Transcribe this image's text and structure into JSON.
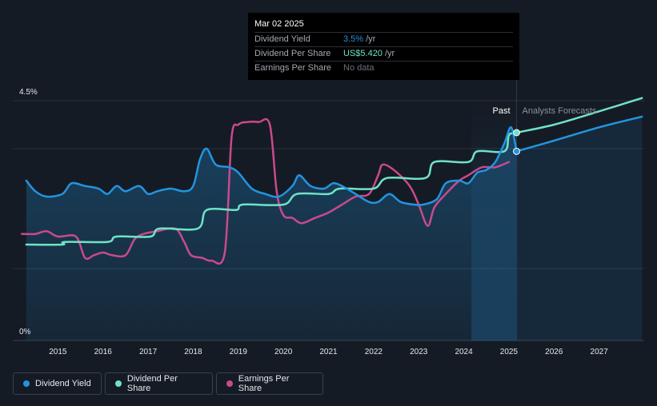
{
  "tooltip": {
    "date": "Mar 02 2025",
    "rows": [
      {
        "label": "Dividend Yield",
        "value": "3.5%",
        "unit": "/yr"
      },
      {
        "label": "Dividend Per Share",
        "value": "US$5.420",
        "unit": "/yr"
      },
      {
        "label": "Earnings Per Share",
        "value": "No data",
        "unit": ""
      }
    ]
  },
  "legend": [
    {
      "label": "Dividend Yield"
    },
    {
      "label": "Dividend Per Share"
    },
    {
      "label": "Earnings Per Share"
    }
  ],
  "colors": {
    "background": "#151b24",
    "dividend_yield": "#2394df",
    "dividend_per_share": "#6fe3c7",
    "earnings_per_share": "#c94a8c",
    "grid": "#2c323c",
    "no_data": "#6b717a"
  },
  "chart_data": {
    "type": "line",
    "x_ticks": [
      "2015",
      "2016",
      "2017",
      "2018",
      "2019",
      "2020",
      "2021",
      "2022",
      "2023",
      "2024",
      "2025",
      "2026",
      "2027"
    ],
    "xlim": [
      2014.0,
      2028.0
    ],
    "y_axis": {
      "top_label": "4.5%",
      "bottom_label": "0%",
      "ylim": [
        0,
        4.5
      ]
    },
    "past_label": "Past",
    "forecast_label": "Analysts Forecasts",
    "past_region_start": 2024.17,
    "forecast_start": 2025.17,
    "grid": true,
    "legend_position": "bottom-left",
    "series": [
      {
        "name": "Dividend Yield",
        "unit": "%",
        "x": [
          2014.3,
          2014.5,
          2014.75,
          2015.1,
          2015.3,
          2015.6,
          2015.9,
          2016.1,
          2016.3,
          2016.5,
          2016.8,
          2017.0,
          2017.2,
          2017.5,
          2017.8,
          2018.0,
          2018.15,
          2018.3,
          2018.5,
          2018.8,
          2019.0,
          2019.3,
          2019.6,
          2019.9,
          2020.2,
          2020.35,
          2020.6,
          2020.9,
          2021.1,
          2021.3,
          2021.6,
          2021.9,
          2022.1,
          2022.35,
          2022.6,
          2022.9,
          2023.1,
          2023.4,
          2023.6,
          2023.9,
          2024.1,
          2024.3,
          2024.5,
          2024.7,
          2024.9,
          2025.05,
          2025.17
        ],
        "y": [
          3.0,
          2.8,
          2.7,
          2.75,
          2.95,
          2.9,
          2.85,
          2.75,
          2.9,
          2.8,
          2.9,
          2.75,
          2.8,
          2.85,
          2.8,
          2.9,
          3.4,
          3.6,
          3.3,
          3.25,
          3.15,
          2.85,
          2.75,
          2.7,
          2.9,
          3.1,
          2.9,
          2.85,
          2.95,
          2.9,
          2.75,
          2.6,
          2.6,
          2.75,
          2.6,
          2.55,
          2.55,
          2.65,
          2.95,
          3.0,
          2.95,
          3.15,
          3.2,
          3.35,
          3.7,
          4.0,
          3.55
        ]
      },
      {
        "name": "Dividend Per Share",
        "unit": "US$",
        "x": [
          2014.3,
          2015.1,
          2015.15,
          2016.1,
          2016.3,
          2017.05,
          2017.25,
          2018.1,
          2018.3,
          2018.95,
          2019.1,
          2020.0,
          2020.3,
          2021.0,
          2021.25,
          2022.0,
          2022.3,
          2023.15,
          2023.35,
          2024.1,
          2024.3,
          2024.9,
          2025.0,
          2025.17,
          2026.0,
          2027.0,
          2027.95
        ],
        "y": [
          1.8,
          1.8,
          1.85,
          1.85,
          1.95,
          1.95,
          2.1,
          2.1,
          2.45,
          2.45,
          2.55,
          2.55,
          2.75,
          2.75,
          2.85,
          2.85,
          3.05,
          3.05,
          3.35,
          3.35,
          3.55,
          3.55,
          3.85,
          3.9,
          4.05,
          4.3,
          4.55
        ]
      },
      {
        "name": "Earnings Per Share",
        "unit": "US$",
        "x": [
          2014.2,
          2014.5,
          2014.75,
          2015.0,
          2015.4,
          2015.6,
          2015.8,
          2016.0,
          2016.2,
          2016.5,
          2016.7,
          2016.9,
          2017.2,
          2017.6,
          2017.8,
          2017.95,
          2018.2,
          2018.4,
          2018.7,
          2018.85,
          2019.0,
          2019.2,
          2019.45,
          2019.7,
          2019.85,
          2020.0,
          2020.2,
          2020.4,
          2020.7,
          2021.0,
          2021.3,
          2021.6,
          2021.9,
          2022.1,
          2022.2,
          2022.45,
          2022.8,
          2023.0,
          2023.2,
          2023.35,
          2023.6,
          2023.9,
          2024.1,
          2024.4,
          2024.7,
          2025.0
        ],
        "y": [
          2.0,
          2.0,
          2.05,
          1.95,
          1.95,
          1.55,
          1.6,
          1.65,
          1.6,
          1.6,
          1.9,
          2.0,
          2.05,
          2.1,
          1.85,
          1.6,
          1.55,
          1.5,
          1.65,
          3.8,
          4.05,
          4.1,
          4.1,
          4.05,
          2.8,
          2.35,
          2.3,
          2.2,
          2.3,
          2.4,
          2.55,
          2.7,
          2.75,
          3.1,
          3.3,
          3.2,
          2.9,
          2.55,
          2.15,
          2.5,
          2.75,
          3.0,
          3.1,
          3.25,
          3.25,
          3.35
        ]
      },
      {
        "name": "Dividend Yield",
        "forecast": true,
        "x": [
          2025.17,
          2026.0,
          2027.0,
          2027.95
        ],
        "y": [
          3.55,
          3.75,
          4.0,
          4.2
        ]
      }
    ]
  }
}
